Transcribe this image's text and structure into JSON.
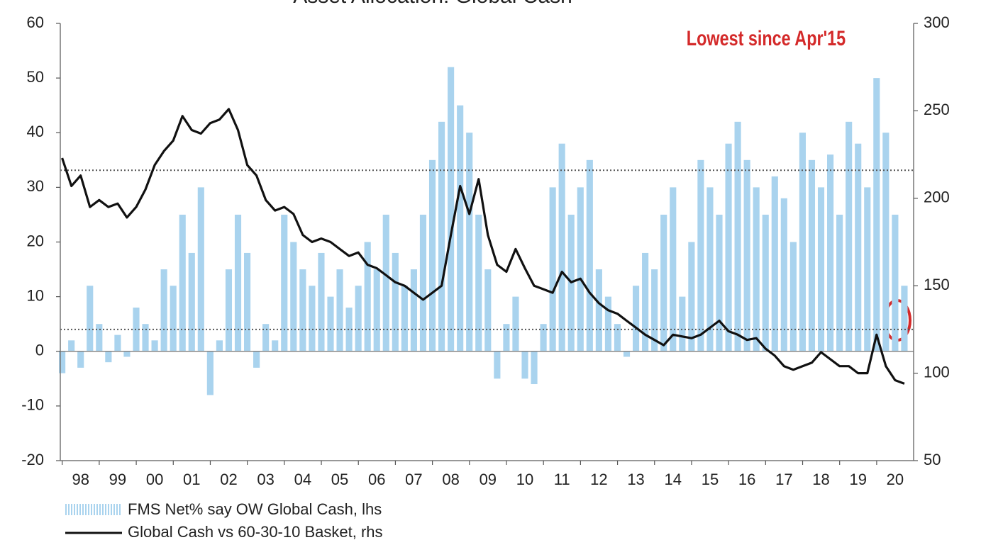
{
  "chart_data": {
    "type": "bar-line",
    "title": "Asset Allocation: Global Cash",
    "annotation": "Lowest since Apr'15",
    "x": [
      1998.0,
      1998.25,
      1998.5,
      1998.75,
      1999.0,
      1999.25,
      1999.5,
      1999.75,
      2000.0,
      2000.25,
      2000.5,
      2000.75,
      2001.0,
      2001.25,
      2001.5,
      2001.75,
      2002.0,
      2002.25,
      2002.5,
      2002.75,
      2003.0,
      2003.25,
      2003.5,
      2003.75,
      2004.0,
      2004.25,
      2004.5,
      2004.75,
      2005.0,
      2005.25,
      2005.5,
      2005.75,
      2006.0,
      2006.25,
      2006.5,
      2006.75,
      2007.0,
      2007.25,
      2007.5,
      2007.75,
      2008.0,
      2008.25,
      2008.5,
      2008.75,
      2009.0,
      2009.25,
      2009.5,
      2009.75,
      2010.0,
      2010.25,
      2010.5,
      2010.75,
      2011.0,
      2011.25,
      2011.5,
      2011.75,
      2012.0,
      2012.25,
      2012.5,
      2012.75,
      2013.0,
      2013.25,
      2013.5,
      2013.75,
      2014.0,
      2014.25,
      2014.5,
      2014.75,
      2015.0,
      2015.25,
      2015.5,
      2015.75,
      2016.0,
      2016.25,
      2016.5,
      2016.75,
      2017.0,
      2017.25,
      2017.5,
      2017.75,
      2018.0,
      2018.25,
      2018.5,
      2018.75,
      2019.0,
      2019.25,
      2019.5,
      2019.75,
      2020.0,
      2020.25,
      2020.5,
      2020.75
    ],
    "series": [
      {
        "name": "FMS Net% say OW Global Cash, lhs",
        "color": "#a9d3ee",
        "kind": "bar",
        "axis": "y",
        "values": [
          -4,
          2,
          -3,
          12,
          5,
          -2,
          3,
          -1,
          8,
          5,
          2,
          15,
          12,
          25,
          18,
          30,
          -8,
          2,
          15,
          25,
          18,
          -3,
          5,
          2,
          25,
          20,
          15,
          12,
          18,
          10,
          15,
          8,
          12,
          20,
          15,
          25,
          18,
          12,
          15,
          25,
          35,
          42,
          52,
          45,
          40,
          25,
          15,
          -5,
          5,
          10,
          -5,
          -6,
          5,
          30,
          38,
          25,
          30,
          35,
          15,
          10,
          5,
          -1,
          12,
          18,
          15,
          25,
          30,
          10,
          20,
          35,
          30,
          25,
          38,
          42,
          35,
          30,
          25,
          32,
          28,
          20,
          40,
          35,
          30,
          36,
          25,
          42,
          38,
          30,
          50,
          40,
          25,
          12
        ]
      },
      {
        "name": "Global Cash vs 60-30-10 Basket, rhs",
        "color": "#111111",
        "kind": "line",
        "axis": "y2",
        "values": [
          223,
          207,
          213,
          195,
          199,
          195,
          197,
          189,
          195,
          205,
          219,
          227,
          233,
          247,
          239,
          237,
          243,
          245,
          251,
          239,
          219,
          213,
          199,
          193,
          195,
          191,
          179,
          175,
          177,
          175,
          171,
          167,
          169,
          162,
          160,
          156,
          152,
          150,
          146,
          142,
          146,
          150,
          179,
          207,
          191,
          211,
          179,
          162,
          158,
          171,
          160,
          150,
          148,
          146,
          158,
          152,
          154,
          146,
          140,
          136,
          134,
          130,
          126,
          122,
          119,
          116,
          122,
          121,
          120,
          122,
          126,
          130,
          124,
          122,
          119,
          120,
          114,
          110,
          104,
          102,
          104,
          106,
          112,
          108,
          104,
          104,
          100,
          100,
          122,
          104,
          96,
          94
        ]
      }
    ],
    "xlim": [
      1997.95,
      2021.0
    ],
    "xticks": [
      {
        "value": 1998.5,
        "label": "98"
      },
      {
        "value": 1999.5,
        "label": "99"
      },
      {
        "value": 2000.5,
        "label": "00"
      },
      {
        "value": 2001.5,
        "label": "01"
      },
      {
        "value": 2002.5,
        "label": "02"
      },
      {
        "value": 2003.5,
        "label": "03"
      },
      {
        "value": 2004.5,
        "label": "04"
      },
      {
        "value": 2005.5,
        "label": "05"
      },
      {
        "value": 2006.5,
        "label": "06"
      },
      {
        "value": 2007.5,
        "label": "07"
      },
      {
        "value": 2008.5,
        "label": "08"
      },
      {
        "value": 2009.5,
        "label": "09"
      },
      {
        "value": 2010.5,
        "label": "10"
      },
      {
        "value": 2011.5,
        "label": "11"
      },
      {
        "value": 2012.5,
        "label": "12"
      },
      {
        "value": 2013.5,
        "label": "13"
      },
      {
        "value": 2014.5,
        "label": "14"
      },
      {
        "value": 2015.5,
        "label": "15"
      },
      {
        "value": 2016.5,
        "label": "16"
      },
      {
        "value": 2017.5,
        "label": "17"
      },
      {
        "value": 2018.5,
        "label": "18"
      },
      {
        "value": 2019.5,
        "label": "19"
      },
      {
        "value": 2020.5,
        "label": "20"
      }
    ],
    "ylim": [
      -20,
      60
    ],
    "yticks": [
      -20,
      -10,
      0,
      10,
      20,
      30,
      40,
      50,
      60
    ],
    "y2lim": [
      50,
      300
    ],
    "y2ticks": [
      50,
      100,
      150,
      200,
      250,
      300
    ],
    "reference_lines": [
      {
        "axis": "y2",
        "value": 216
      },
      {
        "axis": "y2",
        "value": 125
      }
    ]
  }
}
